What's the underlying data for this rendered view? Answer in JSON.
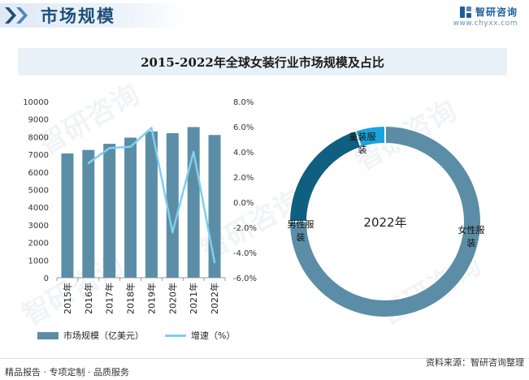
{
  "header": {
    "title": "市场规模",
    "title_ghost": "Chyxx"
  },
  "brand": {
    "name": "智研咨询",
    "url": "www.chyxx.com"
  },
  "watermark_text": "智研咨询",
  "colors": {
    "bar": "#5b8ea6",
    "line": "#7ecff0",
    "donut_female": "#5b8ea6",
    "donut_male": "#0f5f80",
    "donut_child": "#1aa3dd"
  },
  "chart_data": [
    {
      "type": "bar",
      "title": "2015-2022年全球女装行业市场规模及占比",
      "categories": [
        "2015年",
        "2016年",
        "2017年",
        "2018年",
        "2019年",
        "2020年",
        "2021年",
        "2022年"
      ],
      "series": [
        {
          "name": "市场规模（亿美元）",
          "type": "bar",
          "axis": "left",
          "values": [
            7050,
            7250,
            7600,
            7950,
            8300,
            8200,
            8550,
            8100
          ]
        },
        {
          "name": "增速（%）",
          "type": "line",
          "axis": "right",
          "values": [
            null,
            3.1,
            4.3,
            4.4,
            5.9,
            -2.4,
            4.0,
            -4.8
          ]
        }
      ],
      "y_left": {
        "min": 0,
        "max": 10000,
        "step": 1000,
        "ticks": [
          "0",
          "1000",
          "2000",
          "3000",
          "4000",
          "5000",
          "6000",
          "7000",
          "8000",
          "9000",
          "10000"
        ]
      },
      "y_right": {
        "min": -6,
        "max": 8,
        "step": 2,
        "ticks": [
          "-6.0%",
          "-4.0%",
          "-2.0%",
          "0.0%",
          "2.0%",
          "4.0%",
          "6.0%",
          "8.0%"
        ]
      },
      "legend": [
        {
          "label": "市场规模（亿美元）",
          "kind": "bar"
        },
        {
          "label": "增速（%）",
          "kind": "line"
        }
      ]
    },
    {
      "type": "pie",
      "center_label": "2022年",
      "slices": [
        {
          "label": "女性服装",
          "value": 75
        },
        {
          "label": "男性服装",
          "value": 20
        },
        {
          "label": "童装服装",
          "value": 5
        }
      ]
    }
  ],
  "footer": {
    "left": "精品报告 · 专项定制 · 品质服务",
    "right": "资料来源：智研咨询整理"
  }
}
